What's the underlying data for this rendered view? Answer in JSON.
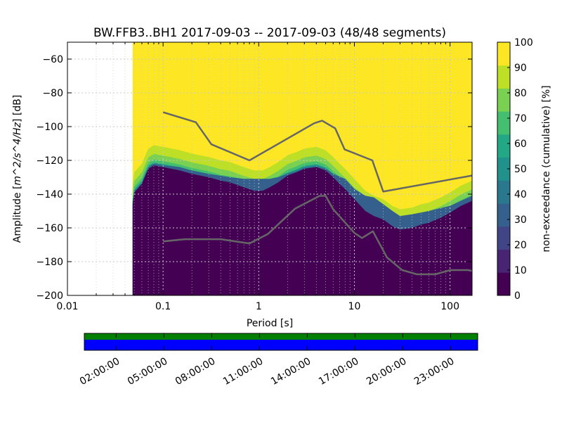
{
  "chart_data": {
    "type": "heatmap",
    "title": "BW.FFB3..BH1   2017-09-03 -- 2017-09-03  (48/48 segments)",
    "xlabel": "Period [s]",
    "ylabel_prefix": "Amplitude [",
    "ylabel_math": "m^2/s^4/Hz",
    "ylabel_suffix": "] [dB]",
    "x_scale": "log",
    "xlim": [
      0.01,
      170
    ],
    "ylim": [
      -200,
      -50
    ],
    "x_ticks": [
      {
        "value": 0.01,
        "label": "0.01"
      },
      {
        "value": 0.1,
        "label": "0.1"
      },
      {
        "value": 1,
        "label": "1"
      },
      {
        "value": 10,
        "label": "10"
      },
      {
        "value": 100,
        "label": "100"
      }
    ],
    "y_ticks": [
      {
        "value": -60,
        "label": "−60"
      },
      {
        "value": -80,
        "label": "−80"
      },
      {
        "value": -100,
        "label": "−100"
      },
      {
        "value": -120,
        "label": "−120"
      },
      {
        "value": -140,
        "label": "−140"
      },
      {
        "value": -160,
        "label": "−160"
      },
      {
        "value": -180,
        "label": "−180"
      },
      {
        "value": -200,
        "label": "−200"
      }
    ],
    "data_start_period": 0.048,
    "heatmap_boundary_base": [
      [
        0.048,
        -146
      ],
      [
        0.05,
        -139
      ],
      [
        0.06,
        -134
      ],
      [
        0.07,
        -125
      ],
      [
        0.08,
        -123
      ],
      [
        0.1,
        -124
      ],
      [
        0.15,
        -126
      ],
      [
        0.2,
        -128
      ],
      [
        0.3,
        -130
      ],
      [
        0.4,
        -132
      ],
      [
        0.5,
        -133
      ],
      [
        0.7,
        -136
      ],
      [
        0.9,
        -138
      ],
      [
        1.1,
        -138
      ],
      [
        1.3,
        -136
      ],
      [
        1.6,
        -133
      ],
      [
        2,
        -129
      ],
      [
        2.5,
        -127
      ],
      [
        3,
        -125
      ],
      [
        4,
        -124
      ],
      [
        5,
        -126
      ],
      [
        6,
        -130
      ],
      [
        7,
        -134
      ],
      [
        8,
        -137
      ],
      [
        10,
        -143
      ],
      [
        13,
        -150
      ],
      [
        16,
        -153
      ],
      [
        20,
        -155
      ],
      [
        25,
        -159
      ],
      [
        30,
        -161
      ],
      [
        40,
        -160
      ],
      [
        50,
        -158
      ],
      [
        60,
        -157
      ],
      [
        80,
        -154
      ],
      [
        100,
        -151
      ],
      [
        130,
        -147
      ],
      [
        170,
        -144
      ]
    ],
    "heatmap_boundary_top": [
      [
        0.048,
        -146
      ],
      [
        0.05,
        -139
      ],
      [
        0.06,
        -134
      ],
      [
        0.07,
        -125
      ],
      [
        0.08,
        -122
      ],
      [
        0.1,
        -123
      ],
      [
        0.15,
        -124
      ],
      [
        0.2,
        -126
      ],
      [
        0.3,
        -128
      ],
      [
        0.5,
        -130
      ],
      [
        0.7,
        -131
      ],
      [
        1,
        -131
      ],
      [
        1.3,
        -131
      ],
      [
        1.6,
        -130
      ],
      [
        2,
        -128
      ],
      [
        3,
        -125
      ],
      [
        4,
        -124
      ],
      [
        5,
        -125
      ],
      [
        6,
        -128
      ],
      [
        8,
        -131
      ],
      [
        10,
        -137
      ],
      [
        13,
        -141
      ],
      [
        16,
        -142
      ],
      [
        20,
        -146
      ],
      [
        25,
        -150
      ],
      [
        30,
        -153
      ],
      [
        40,
        -152
      ],
      [
        60,
        -150
      ],
      [
        100,
        -147
      ],
      [
        130,
        -144
      ],
      [
        170,
        -141
      ]
    ],
    "series": [
      {
        "name": "NHNM",
        "color": "#666666",
        "points": [
          [
            0.1,
            -91.5
          ],
          [
            0.22,
            -97.4
          ],
          [
            0.32,
            -110.5
          ],
          [
            0.8,
            -120
          ],
          [
            3.8,
            -98
          ],
          [
            4.6,
            -96.5
          ],
          [
            6.3,
            -101
          ],
          [
            7.9,
            -113.5
          ],
          [
            15.4,
            -120
          ],
          [
            20,
            -138.5
          ],
          [
            170,
            -129
          ]
        ]
      },
      {
        "name": "NLNM",
        "color": "#666666",
        "points": [
          [
            0.1,
            -168
          ],
          [
            0.17,
            -166.7
          ],
          [
            0.4,
            -166.7
          ],
          [
            0.8,
            -169.2
          ],
          [
            1.24,
            -163.7
          ],
          [
            2.4,
            -148.6
          ],
          [
            4.3,
            -141.1
          ],
          [
            5,
            -141
          ],
          [
            6,
            -149
          ],
          [
            10,
            -163
          ],
          [
            12,
            -166
          ],
          [
            15.6,
            -162
          ],
          [
            21.9,
            -177.5
          ],
          [
            31.6,
            -185
          ],
          [
            45,
            -187.5
          ],
          [
            70,
            -187.5
          ],
          [
            101,
            -185
          ],
          [
            154,
            -185
          ],
          [
            170,
            -185.5
          ]
        ]
      }
    ],
    "colorbar": {
      "label": "non-exceedance (cumulative) [%]",
      "range": [
        0,
        100
      ],
      "ticks": [
        {
          "value": 0,
          "label": "0"
        },
        {
          "value": 10,
          "label": "10"
        },
        {
          "value": 20,
          "label": "20"
        },
        {
          "value": 30,
          "label": "30"
        },
        {
          "value": 40,
          "label": "40"
        },
        {
          "value": 50,
          "label": "50"
        },
        {
          "value": 60,
          "label": "60"
        },
        {
          "value": 70,
          "label": "70"
        },
        {
          "value": 80,
          "label": "80"
        },
        {
          "value": 90,
          "label": "90"
        },
        {
          "value": 100,
          "label": "100"
        }
      ],
      "colors": [
        "#440154",
        "#482475",
        "#414487",
        "#355f8d",
        "#2a788e",
        "#21918c",
        "#22a884",
        "#44bf70",
        "#7ad151",
        "#bddf26",
        "#fde725"
      ]
    },
    "coverage": {
      "time_ticks": [
        {
          "hour": 2,
          "label": "02:00:00"
        },
        {
          "hour": 5,
          "label": "05:00:00"
        },
        {
          "hour": 8,
          "label": "08:00:00"
        },
        {
          "hour": 11,
          "label": "11:00:00"
        },
        {
          "hour": 14,
          "label": "14:00:00"
        },
        {
          "hour": 17,
          "label": "17:00:00"
        },
        {
          "hour": 20,
          "label": "20:00:00"
        },
        {
          "hour": 23,
          "label": "23:00:00"
        }
      ],
      "time_range_hours": [
        0,
        24.7
      ],
      "data_color": "#0000ff",
      "segment_color": "#008000"
    },
    "colors": {
      "background": "#ffffff",
      "noise_model": "#666666",
      "grid": "#c8c8c8"
    }
  }
}
